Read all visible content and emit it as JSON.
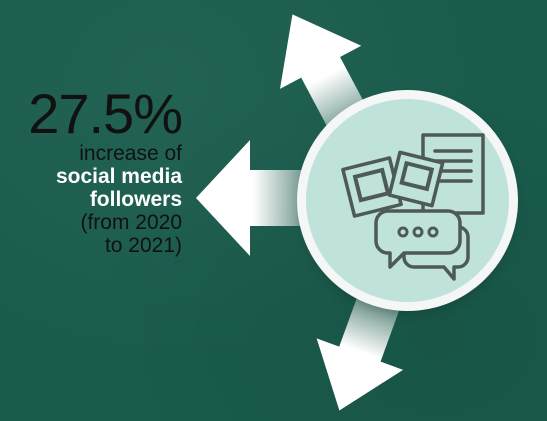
{
  "stat": {
    "percent": "27.5%",
    "line1": "increase of",
    "bold_line1": "social media",
    "bold_line2": "followers",
    "line3": "(from 2020",
    "line4": "to 2021)"
  },
  "icon": {
    "name": "social-media-icon",
    "bubble_text": "ooo"
  },
  "colors": {
    "background": "#1a5c4c",
    "circle_fill": "#bfe2da",
    "arrow": "#ffffff",
    "icon_stroke": "#4e5a57"
  }
}
